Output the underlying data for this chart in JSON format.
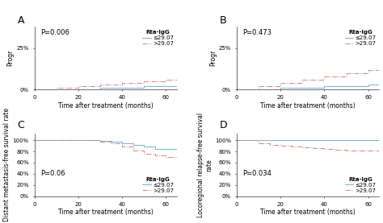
{
  "panels": [
    {
      "label": "A",
      "pvalue": "P=0.006",
      "ylabel": "Progr",
      "xlabel": "Time after treatment (months)",
      "xlim": [
        0,
        65
      ],
      "ylim": [
        0,
        0.38
      ],
      "yticks": [
        0,
        0.25
      ],
      "ytick_labels": [
        "0%",
        "25%"
      ],
      "xticks": [
        0,
        20,
        40,
        60
      ],
      "legend_title": "Rta-IgG",
      "legend_labels": [
        "≤29.07",
        ">29.07"
      ],
      "line1_color": "#7bafd4",
      "line2_color": "#cc8888",
      "line1_x": [
        0,
        30,
        50,
        65
      ],
      "line1_y": [
        0.0,
        0.01,
        0.02,
        0.02
      ],
      "line2_x": [
        0,
        10,
        20,
        30,
        40,
        50,
        60,
        65
      ],
      "line2_y": [
        0.0,
        0.01,
        0.02,
        0.03,
        0.04,
        0.05,
        0.06,
        0.06
      ],
      "legend_loc": "upper right",
      "legend_show": true
    },
    {
      "label": "B",
      "pvalue": "P=0.473",
      "ylabel": "Progr",
      "xlabel": "Time after treatment (months)",
      "xlim": [
        0,
        65
      ],
      "ylim": [
        0,
        0.38
      ],
      "yticks": [
        0,
        0.25
      ],
      "ytick_labels": [
        "0%",
        "25%"
      ],
      "xticks": [
        0,
        20,
        40,
        60
      ],
      "legend_title": "Rta-IgG",
      "legend_labels": [
        "≤29.07",
        ">29.07"
      ],
      "line1_color": "#7bafd4",
      "line2_color": "#cc8888",
      "line1_x": [
        0,
        20,
        40,
        60,
        65
      ],
      "line1_y": [
        0.0,
        0.01,
        0.02,
        0.03,
        0.03
      ],
      "line2_x": [
        0,
        10,
        20,
        30,
        40,
        50,
        60,
        65
      ],
      "line2_y": [
        0.0,
        0.02,
        0.04,
        0.06,
        0.08,
        0.1,
        0.12,
        0.12
      ],
      "legend_loc": "upper right",
      "legend_show": true
    },
    {
      "label": "C",
      "pvalue": "P=0.06",
      "ylabel": "Distant metastasis-free survival rate",
      "xlabel": "Time after treatment (months)",
      "xlim": [
        0,
        65
      ],
      "ylim": [
        0.0,
        1.12
      ],
      "yticks": [
        0.0,
        0.2,
        0.4,
        0.6,
        0.8,
        1.0
      ],
      "ytick_labels": [
        "0%",
        "20%",
        "40%",
        "60%",
        "80%",
        "100%"
      ],
      "xticks": [
        0,
        20,
        40,
        60
      ],
      "legend_title": "Rta-IgG",
      "legend_labels": [
        "≤29.07",
        ">29.07"
      ],
      "line1_color": "#7bafd4",
      "line2_color": "#cc8888",
      "line1_x": [
        0,
        20,
        30,
        35,
        40,
        45,
        50,
        55,
        60,
        65
      ],
      "line1_y": [
        1.0,
        1.0,
        0.99,
        0.97,
        0.94,
        0.91,
        0.88,
        0.85,
        0.85,
        0.85
      ],
      "line2_x": [
        0,
        20,
        30,
        35,
        40,
        45,
        50,
        55,
        60,
        65
      ],
      "line2_y": [
        1.0,
        1.0,
        0.98,
        0.95,
        0.88,
        0.82,
        0.76,
        0.73,
        0.7,
        0.7
      ],
      "legend_loc": "lower right",
      "legend_show": true
    },
    {
      "label": "D",
      "pvalue": "P=0.034",
      "ylabel": "Locoregional relapse-free survival rate",
      "xlabel": "Time after treatment (months)",
      "xlim": [
        0,
        65
      ],
      "ylim": [
        0.0,
        1.12
      ],
      "yticks": [
        0.0,
        0.2,
        0.4,
        0.6,
        0.8,
        1.0
      ],
      "ytick_labels": [
        "0%",
        "20%",
        "40%",
        "60%",
        "80%",
        "100%"
      ],
      "xticks": [
        0,
        20,
        40,
        60
      ],
      "legend_title": "Rta-IgG",
      "legend_labels": [
        "≤29.07",
        ">29.07"
      ],
      "line1_color": "#7bafd4",
      "line2_color": "#cc8888",
      "line1_x": [
        0,
        65
      ],
      "line1_y": [
        1.0,
        1.0
      ],
      "line2_x": [
        0,
        10,
        15,
        20,
        25,
        30,
        35,
        40,
        45,
        50,
        55,
        60,
        65
      ],
      "line2_y": [
        1.0,
        0.95,
        0.92,
        0.9,
        0.88,
        0.87,
        0.86,
        0.84,
        0.83,
        0.82,
        0.81,
        0.81,
        0.81
      ],
      "legend_loc": "lower right",
      "legend_show": true
    }
  ],
  "bg_color": "#ffffff",
  "tick_fontsize": 5,
  "axis_label_fontsize": 5.5,
  "pvalue_fontsize": 6,
  "legend_fontsize": 5,
  "panel_label_fontsize": 9
}
